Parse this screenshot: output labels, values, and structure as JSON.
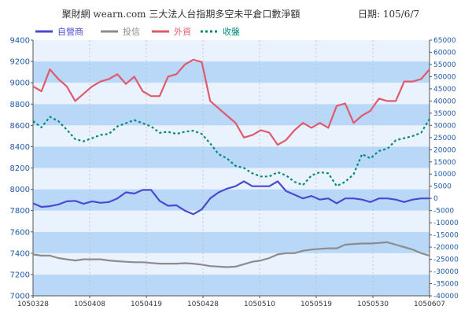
{
  "chart_data": {
    "type": "line",
    "title": "聚財網 wearn.com 三大法人台指期多空未平倉口數淨額",
    "date_label": "日期: 105/6/7",
    "x_labels": [
      "1050328",
      "1050408",
      "1050419",
      "1050428",
      "1050510",
      "1050519",
      "1050530",
      "1050607"
    ],
    "y_left": {
      "min": 7000,
      "max": 9400,
      "ticks": [
        7000,
        7200,
        7400,
        7600,
        7800,
        8000,
        8200,
        8400,
        8600,
        8800,
        9000,
        9200,
        9400
      ]
    },
    "y_right": {
      "min": -40000,
      "max": 65000,
      "ticks": [
        -40000,
        -35000,
        -30000,
        -25000,
        -20000,
        -15000,
        -10000,
        -5000,
        0,
        5000,
        10000,
        15000,
        20000,
        25000,
        30000,
        35000,
        40000,
        45000,
        50000,
        55000,
        60000,
        65000
      ]
    },
    "series": [
      {
        "name": "自營商",
        "axis": "right",
        "color": "#4a4ad0",
        "dash": "",
        "values": [
          -2000,
          -3500,
          -3200,
          -2500,
          -1200,
          -1000,
          -2200,
          -1200,
          -1800,
          -1500,
          0,
          2500,
          2000,
          3500,
          3500,
          -1000,
          -3000,
          -2800,
          -5000,
          -6500,
          -4500,
          0,
          2500,
          4000,
          5000,
          7000,
          5000,
          5000,
          5000,
          7000,
          3000,
          1500,
          0,
          1000,
          -500,
          0,
          -2000,
          0,
          0,
          -500,
          -1500,
          0,
          0,
          -500,
          -1500,
          -500,
          0,
          0
        ],
        "label": ""
      },
      {
        "name": "投信",
        "axis": "right",
        "color": "#8c8c8c",
        "dash": "",
        "values": [
          -23000,
          -23500,
          -23500,
          -24500,
          -25000,
          -25500,
          -25000,
          -25000,
          -25000,
          -25500,
          -25800,
          -26000,
          -26200,
          -26200,
          -26500,
          -26800,
          -26800,
          -26800,
          -26600,
          -26800,
          -27200,
          -27800,
          -28000,
          -28200,
          -28000,
          -27000,
          -26000,
          -25500,
          -24500,
          -23000,
          -22500,
          -22500,
          -21500,
          -21000,
          -20700,
          -20500,
          -20500,
          -19000,
          -18700,
          -18500,
          -18500,
          -18300,
          -18000,
          -19000,
          -20000,
          -21000,
          -22500,
          -23500
        ],
        "label": ""
      },
      {
        "name": "外資",
        "axis": "right",
        "color": "#e05a6e",
        "dash": "",
        "values": [
          46000,
          44000,
          53000,
          49000,
          46000,
          40000,
          43000,
          46000,
          48000,
          49000,
          51000,
          47000,
          50000,
          44000,
          42000,
          42000,
          50000,
          51000,
          55000,
          57000,
          56000,
          40000,
          37000,
          34000,
          31000,
          25000,
          26000,
          28000,
          27000,
          22000,
          24000,
          28000,
          31000,
          29000,
          31000,
          29000,
          38000,
          39000,
          31000,
          34000,
          36000,
          41000,
          40000,
          40000,
          48000,
          48000,
          49000,
          53000
        ],
        "label": ""
      },
      {
        "name": "收盤",
        "axis": "left",
        "color": "#008b77",
        "dash": "3,3",
        "values": [
          8640,
          8580,
          8680,
          8640,
          8560,
          8470,
          8450,
          8480,
          8510,
          8520,
          8590,
          8620,
          8650,
          8620,
          8590,
          8530,
          8540,
          8520,
          8540,
          8550,
          8520,
          8430,
          8330,
          8290,
          8220,
          8200,
          8150,
          8120,
          8120,
          8160,
          8130,
          8070,
          8040,
          8130,
          8160,
          8150,
          8030,
          8070,
          8140,
          8330,
          8290,
          8360,
          8380,
          8460,
          8480,
          8500,
          8530,
          8660
        ],
        "label": ""
      }
    ]
  }
}
